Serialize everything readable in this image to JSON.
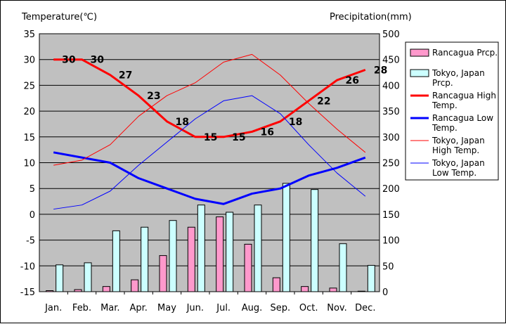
{
  "chart_data": {
    "type": "bar+line",
    "categories": [
      "Jan.",
      "Feb.",
      "Mar.",
      "Apr.",
      "May",
      "Jun.",
      "Jul.",
      "Aug.",
      "Sep.",
      "Oct.",
      "Nov.",
      "Dec."
    ],
    "left_axis": {
      "title": "Temperature(℃)",
      "min": -15,
      "max": 35,
      "step": 5
    },
    "right_axis": {
      "title": "Precipitation(mm)",
      "min": 0,
      "max": 500,
      "step": 50
    },
    "bar_series": [
      {
        "name": "Rancagua Prcp.",
        "color": "#ff99cc",
        "values": [
          2,
          4,
          10,
          23,
          70,
          125,
          145,
          92,
          27,
          10,
          7,
          1
        ]
      },
      {
        "name": "Tokyo, Japan Prcp.",
        "color": "#ccffff",
        "values": [
          52,
          56,
          118,
          125,
          138,
          168,
          154,
          168,
          210,
          198,
          93,
          51
        ]
      }
    ],
    "line_series": [
      {
        "name": "Rancagua High Temp.",
        "color": "#ff0000",
        "width": 3,
        "values": [
          30,
          30,
          27,
          23,
          18,
          15,
          15,
          16,
          18,
          22,
          26,
          28
        ],
        "labels": true
      },
      {
        "name": "Rancagua Low Temp.",
        "color": "#0000ff",
        "width": 3,
        "values": [
          12,
          11,
          10,
          7,
          5,
          3,
          2,
          4,
          5,
          7.5,
          9,
          11
        ],
        "labels": false
      },
      {
        "name": "Tokyo, Japan High Temp.",
        "color": "#ff0000",
        "width": 1,
        "values": [
          9.5,
          10.5,
          13.5,
          19,
          23,
          25.5,
          29.5,
          31,
          27,
          21.5,
          16.5,
          12
        ],
        "labels": false
      },
      {
        "name": "Tokyo, Japan Low Temp.",
        "color": "#0000ff",
        "width": 1,
        "values": [
          1,
          1.8,
          4.5,
          9.5,
          14,
          18.5,
          22,
          23,
          19.5,
          13.5,
          8,
          3.5
        ],
        "labels": false
      }
    ],
    "legend": [
      {
        "kind": "bar",
        "color": "#ff99cc",
        "lines": [
          "Rancagua Prcp."
        ]
      },
      {
        "kind": "bar",
        "color": "#ccffff",
        "lines": [
          "Tokyo, Japan",
          "Prcp."
        ]
      },
      {
        "kind": "line",
        "color": "#ff0000",
        "width": 3,
        "lines": [
          "Rancagua High",
          "Temp."
        ]
      },
      {
        "kind": "line",
        "color": "#0000ff",
        "width": 3,
        "lines": [
          "Rancagua Low",
          "Temp."
        ]
      },
      {
        "kind": "line",
        "color": "#ff0000",
        "width": 1,
        "lines": [
          "Tokyo, Japan",
          "High Temp."
        ]
      },
      {
        "kind": "line",
        "color": "#0000ff",
        "width": 1,
        "lines": [
          "Tokyo, Japan",
          "Low Temp."
        ]
      }
    ],
    "plot_background": "#c0c0c0",
    "grid": true
  }
}
